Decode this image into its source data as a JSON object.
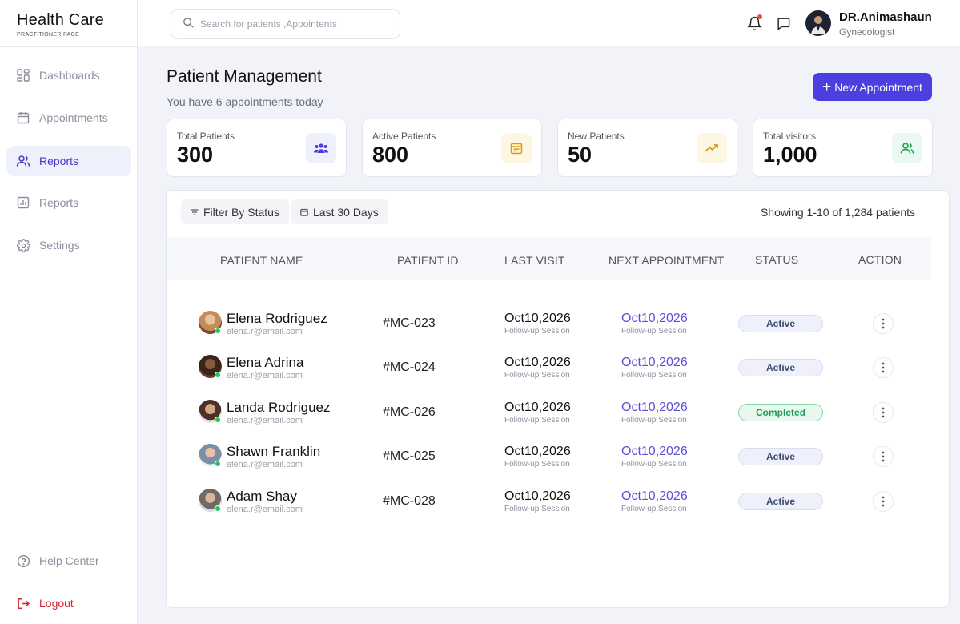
{
  "brand": {
    "title": "Health Care",
    "subtitle": "PRACTITIONER PAGE"
  },
  "sidebar": {
    "items": [
      {
        "label": "Dashboards",
        "icon": "grid-icon",
        "active": false
      },
      {
        "label": "Appointments",
        "icon": "calendar-icon",
        "active": false
      },
      {
        "label": "Reports",
        "icon": "users-icon",
        "active": true
      },
      {
        "label": "Reports",
        "icon": "bar-chart-icon",
        "active": false
      },
      {
        "label": "Settings",
        "icon": "gear-icon",
        "active": false
      }
    ],
    "help_label": "Help Center",
    "logout_label": "Logout"
  },
  "topbar": {
    "search_placeholder": "Search for patients ,Appointents",
    "doctor_name": "DR.Animashaun",
    "doctor_role": "Gynecologist"
  },
  "header": {
    "title": "Patient Management",
    "subtitle": "You have 6 appointments today",
    "new_button_label": "New Appointment"
  },
  "stats": [
    {
      "label": "Total Patients",
      "value": "300",
      "icon": "group-icon",
      "bg": "#eef1fb",
      "color": "#4c3fe0"
    },
    {
      "label": "Active Patients",
      "value": "800",
      "icon": "calendar-icon",
      "bg": "#fdf6e3",
      "color": "#d99a0c"
    },
    {
      "label": "New Patients",
      "value": "50",
      "icon": "trending-up-icon",
      "bg": "#fdf6e3",
      "color": "#d99a0c"
    },
    {
      "label": "Total visitors",
      "value": "1,000",
      "icon": "users-icon",
      "bg": "#e9f8f0",
      "color": "#16a34a"
    }
  ],
  "table": {
    "filter_label": "Filter By Status",
    "range_label": "Last 30 Days",
    "showing": "Showing 1-10 of 1,284 patients",
    "headers": [
      "PATIENT NAME",
      "PATIENT ID",
      "LAST VISIT",
      "NEXT APPOINTMENT",
      "STATUS",
      "ACTION"
    ],
    "rows": [
      {
        "name": "Elena Rodriguez",
        "email": "elena.r@email.com",
        "id": "#MC-023",
        "last_visit": "Oct10,2026",
        "last_sub": "Follow-up Session",
        "next": "Oct10,2026",
        "next_sub": "Follow-up Session",
        "status": "Active",
        "avatar": "#c48a5a"
      },
      {
        "name": "Elena Adrina",
        "email": "elena.r@email.com",
        "id": "#MC-024",
        "last_visit": "Oct10,2026",
        "last_sub": "Follow-up Session",
        "next": "Oct10,2026",
        "next_sub": "Follow-up Session",
        "status": "Active",
        "avatar": "#6b3f2a"
      },
      {
        "name": "Landa Rodriguez",
        "email": "elena.r@email.com",
        "id": "#MC-026",
        "last_visit": "Oct10,2026",
        "last_sub": "Follow-up Session",
        "next": "Oct10,2026",
        "next_sub": "Follow-up Session",
        "status": "Completed",
        "avatar": "#8a6a55"
      },
      {
        "name": "Shawn Franklin",
        "email": "elena.r@email.com",
        "id": "#MC-025",
        "last_visit": "Oct10,2026",
        "last_sub": "Follow-up Session",
        "next": "Oct10,2026",
        "next_sub": "Follow-up Session",
        "status": "Active",
        "avatar": "#9fb1c4"
      },
      {
        "name": "Adam Shay",
        "email": "elena.r@email.com",
        "id": "#MC-028",
        "last_visit": "Oct10,2026",
        "last_sub": "Follow-up Session",
        "next": "Oct10,2026",
        "next_sub": "Follow-up Session",
        "status": "Active",
        "avatar": "#a39a94"
      }
    ]
  }
}
